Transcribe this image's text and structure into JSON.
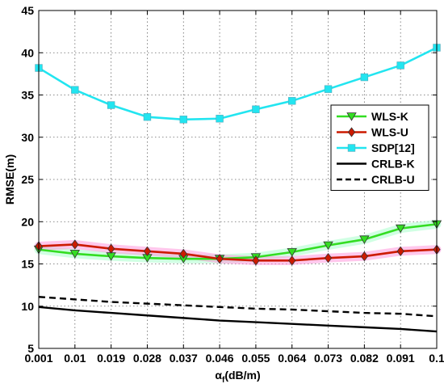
{
  "chart_data": {
    "type": "line",
    "title": "",
    "xlabel": "α",
    "xlabel_sub": "f",
    "xlabel_unit": "(dB/m)",
    "ylabel": "RMSE(m)",
    "x": [
      "0.001",
      "0.01",
      "0.019",
      "0.028",
      "0.037",
      "0.046",
      "0.055",
      "0.064",
      "0.073",
      "0.082",
      "0.091",
      "0.1"
    ],
    "ylim": [
      5,
      45
    ],
    "yticks": [
      "5",
      "10",
      "15",
      "20",
      "25",
      "30",
      "35",
      "40",
      "45"
    ],
    "grid": true,
    "legend_position": "right",
    "series": [
      {
        "name": "WLS-K",
        "color": "#33dd22",
        "marker": "triangle-down",
        "style": "solid",
        "shadow": "#aaffcc",
        "values": [
          16.7,
          16.2,
          15.9,
          15.7,
          15.6,
          15.6,
          15.8,
          16.4,
          17.2,
          17.9,
          19.2,
          19.7
        ]
      },
      {
        "name": "WLS-U",
        "color": "#cc1a00",
        "marker": "diamond",
        "style": "solid",
        "shadow": "#ff99dd",
        "values": [
          17.1,
          17.3,
          16.8,
          16.5,
          16.2,
          15.6,
          15.4,
          15.4,
          15.7,
          15.9,
          16.5,
          16.7
        ]
      },
      {
        "name": "SDP[12]",
        "color": "#22e5f0",
        "marker": "square",
        "style": "solid",
        "values": [
          38.2,
          35.6,
          33.8,
          32.4,
          32.1,
          32.2,
          33.3,
          34.3,
          35.7,
          37.1,
          38.5,
          40.6
        ]
      },
      {
        "name": "CRLB-K",
        "color": "#000000",
        "marker": "none",
        "style": "solid",
        "values": [
          9.9,
          9.5,
          9.2,
          8.9,
          8.6,
          8.3,
          8.1,
          7.9,
          7.7,
          7.5,
          7.3,
          7.0
        ]
      },
      {
        "name": "CRLB-U",
        "color": "#000000",
        "marker": "none",
        "style": "dashed",
        "values": [
          11.1,
          10.8,
          10.5,
          10.3,
          10.1,
          9.9,
          9.7,
          9.6,
          9.4,
          9.2,
          9.1,
          8.8
        ]
      }
    ]
  }
}
